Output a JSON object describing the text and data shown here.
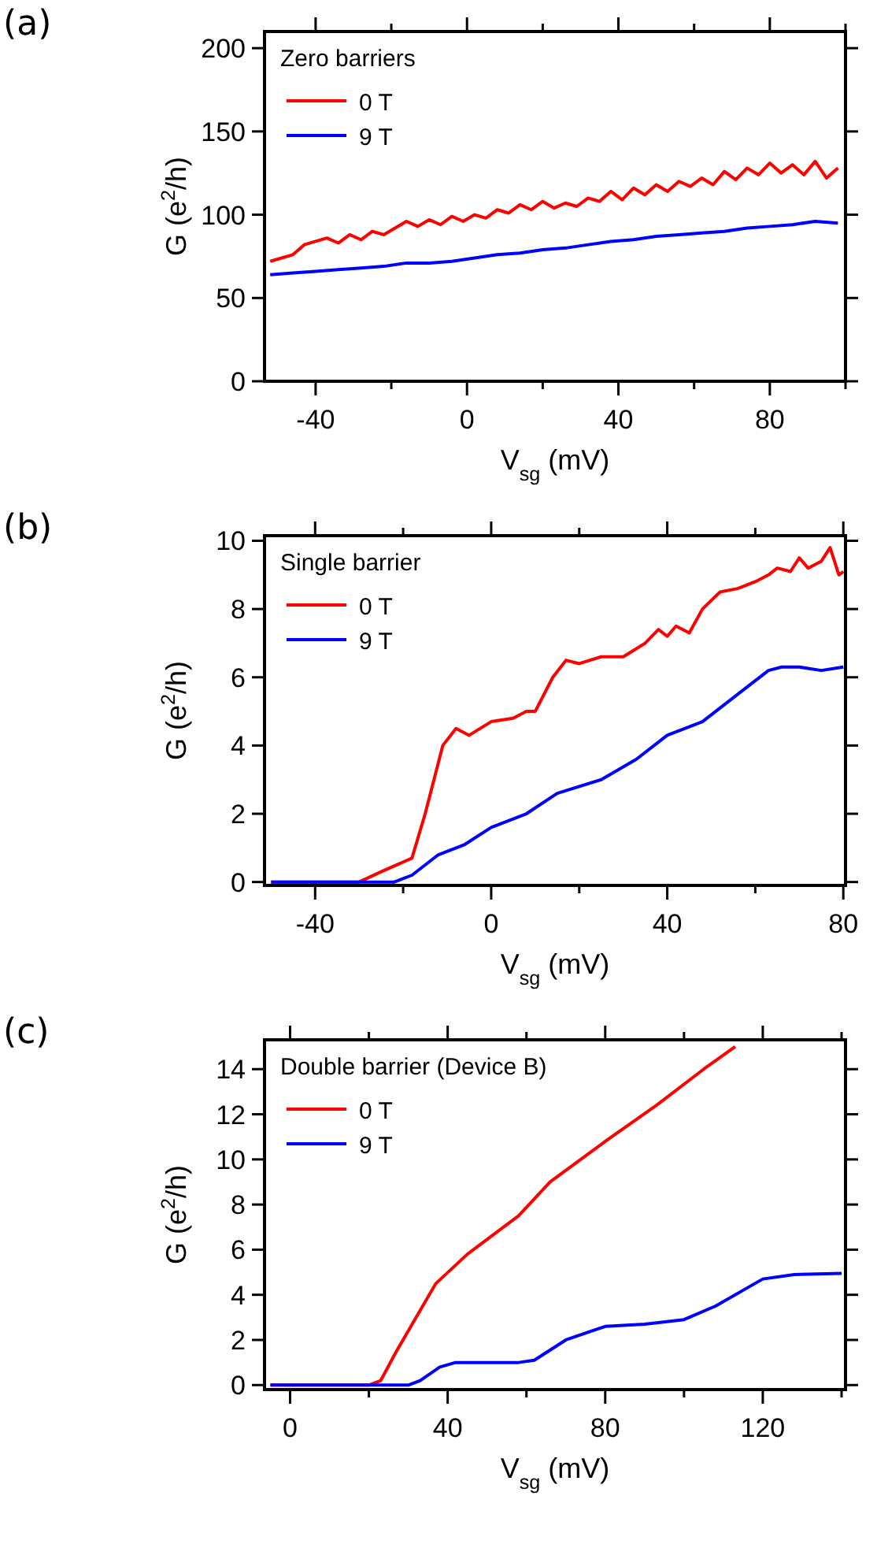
{
  "chart_data": [
    {
      "type": "line",
      "title": "(a)",
      "xlabel": "V$_{sg}$ (mV)",
      "ylabel": "G (e$^{2}$/h)",
      "legend_title": "Zero barriers",
      "legend": "top left",
      "xlim": [
        -53.5,
        100
      ],
      "xticks": [
        -40,
        {
          "value": -20,
          "label": null
        },
        0,
        {
          "value": 20,
          "label": null
        },
        40,
        {
          "value": 60,
          "label": null
        },
        80,
        {
          "value": 100,
          "label": null
        }
      ],
      "ylim": [
        0,
        210
      ],
      "yticks": [
        0,
        50,
        100,
        150,
        200
      ],
      "grid": false,
      "line_style": "solid",
      "series": [
        {
          "name": "0 T",
          "color": "#ff0000",
          "x": [
            -52,
            -49,
            -46,
            -43,
            -40,
            -37,
            -34,
            -31,
            -28,
            -25,
            -22,
            -19,
            -16,
            -13,
            -10,
            -7,
            -4,
            -1,
            2,
            5,
            8,
            11,
            14,
            17,
            20,
            23,
            26,
            29,
            32,
            35,
            38,
            41,
            44,
            47,
            50,
            53,
            56,
            59,
            62,
            65,
            68,
            71,
            74,
            77,
            80,
            83,
            86,
            89,
            92,
            95,
            98
          ],
          "values": [
            72,
            74,
            76,
            82,
            84,
            86,
            83,
            88,
            85,
            90,
            88,
            92,
            96,
            93,
            97,
            94,
            99,
            96,
            100,
            98,
            103,
            101,
            106,
            103,
            108,
            104,
            107,
            105,
            110,
            108,
            114,
            109,
            116,
            112,
            118,
            114,
            120,
            117,
            122,
            118,
            126,
            121,
            128,
            124,
            131,
            125,
            130,
            124,
            132,
            122,
            128
          ]
        },
        {
          "name": "9 T",
          "color": "#0000ff",
          "x": [
            -52,
            -46,
            -40,
            -34,
            -28,
            -22,
            -16,
            -10,
            -4,
            2,
            8,
            14,
            20,
            26,
            32,
            38,
            44,
            50,
            56,
            62,
            68,
            74,
            80,
            86,
            92,
            98
          ],
          "values": [
            64,
            65,
            66,
            67,
            68,
            69,
            71,
            71,
            72,
            74,
            76,
            77,
            79,
            80,
            82,
            84,
            85,
            87,
            88,
            89,
            90,
            92,
            93,
            94,
            96,
            95
          ]
        }
      ]
    },
    {
      "type": "line",
      "title": "(b)",
      "xlabel": "V$_{sg}$ (mV)",
      "ylabel": "G (e$^{2}$/h)",
      "legend_title": "Single barrier",
      "legend": "top left",
      "xlim": [
        -51.5,
        80.5
      ],
      "xticks": [
        -40,
        {
          "value": -20,
          "label": null
        },
        0,
        {
          "value": 20,
          "label": null
        },
        40,
        {
          "value": 60,
          "label": null
        },
        80
      ],
      "ylim": [
        -0.1,
        10.15
      ],
      "yticks": [
        0,
        2,
        4,
        6,
        8,
        10
      ],
      "grid": false,
      "line_style": "solid",
      "series": [
        {
          "name": "0 T",
          "color": "#ff0000",
          "x": [
            -50,
            -30,
            -25,
            -18,
            -15,
            -13,
            -11,
            -8,
            -5,
            0,
            5,
            8,
            10,
            14,
            17,
            20,
            25,
            30,
            35,
            38,
            40,
            42,
            45,
            48,
            52,
            56,
            60,
            63,
            65,
            68,
            70,
            72,
            75,
            77,
            79,
            80
          ],
          "values": [
            0,
            0,
            0.3,
            0.7,
            2,
            3,
            4,
            4.5,
            4.3,
            4.7,
            4.8,
            5,
            5,
            6,
            6.5,
            6.4,
            6.6,
            6.6,
            7,
            7.4,
            7.2,
            7.5,
            7.3,
            8,
            8.5,
            8.6,
            8.8,
            9,
            9.2,
            9.1,
            9.5,
            9.2,
            9.4,
            9.8,
            9,
            9.1
          ]
        },
        {
          "name": "9 T",
          "color": "#0000ff",
          "x": [
            -50,
            -22,
            -18,
            -12,
            -6,
            0,
            8,
            15,
            25,
            33,
            40,
            48,
            56,
            63,
            66,
            70,
            75,
            80
          ],
          "values": [
            0,
            0,
            0.2,
            0.8,
            1.1,
            1.6,
            2,
            2.6,
            3,
            3.6,
            4.3,
            4.7,
            5.5,
            6.2,
            6.3,
            6.3,
            6.2,
            6.3
          ]
        }
      ]
    },
    {
      "type": "line",
      "title": "(c)",
      "xlabel": "V$_{sg}$ (mV)",
      "ylabel": "G (e$^{2}$/h)",
      "legend_title": "Double barrier (Device B)",
      "legend": "top left",
      "xlim": [
        -6.5,
        141
      ],
      "xticks": [
        0,
        {
          "value": 20,
          "label": null
        },
        40,
        {
          "value": 60,
          "label": null
        },
        80,
        {
          "value": 100,
          "label": null
        },
        120,
        {
          "value": 140,
          "label": null
        }
      ],
      "ylim": [
        -0.2,
        15.3
      ],
      "yticks": [
        0,
        2,
        4,
        6,
        8,
        10,
        12,
        14
      ],
      "grid": false,
      "line_style": "solid",
      "series": [
        {
          "name": "0 T",
          "color": "#ff0000",
          "x": [
            -5,
            20,
            23,
            27,
            32,
            37,
            45,
            58,
            66,
            80,
            93,
            105,
            113
          ],
          "values": [
            0,
            0,
            0.2,
            1.5,
            3,
            4.5,
            5.8,
            7.5,
            9,
            10.8,
            12.4,
            14,
            15
          ]
        },
        {
          "name": "9 T",
          "color": "#0000ff",
          "x": [
            -5,
            30,
            33,
            38,
            42,
            58,
            62,
            70,
            80,
            90,
            100,
            108,
            120,
            128,
            140
          ],
          "values": [
            0,
            0,
            0.2,
            0.8,
            1,
            1,
            1.1,
            2,
            2.6,
            2.7,
            2.9,
            3.5,
            4.7,
            4.9,
            4.95
          ]
        }
      ]
    }
  ]
}
